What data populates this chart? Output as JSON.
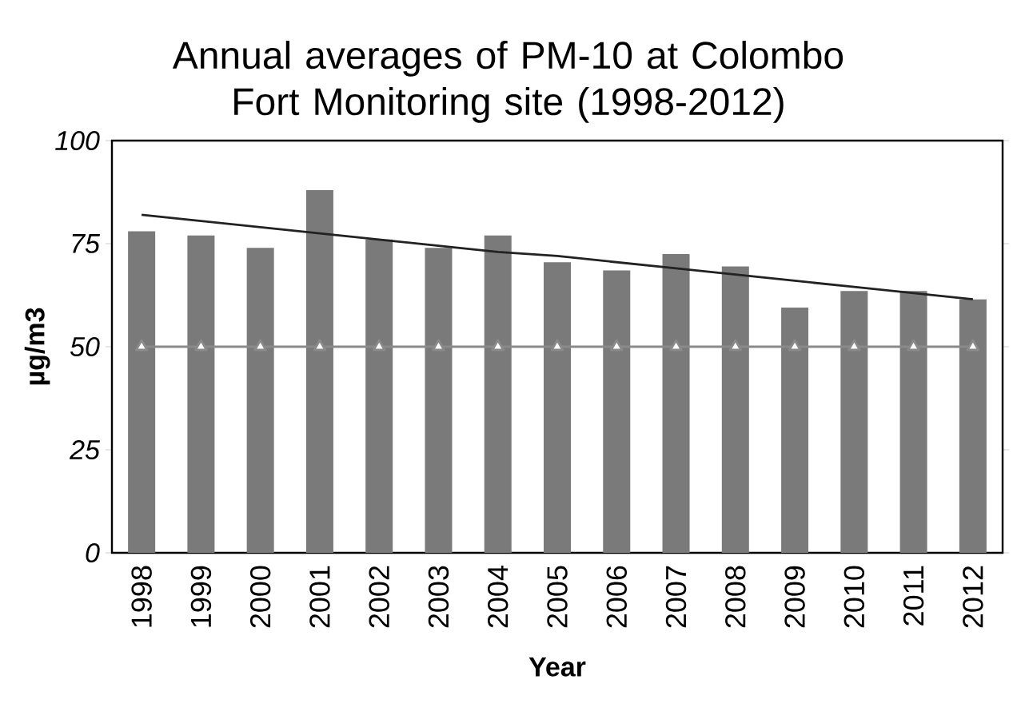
{
  "chart_data": {
    "type": "bar",
    "title": "Annual averages of PM-10 at Colombo Fort Monitoring site (1998-2012)",
    "xlabel": "Year",
    "ylabel": "µg/m3",
    "categories": [
      "1998",
      "1999",
      "2000",
      "2001",
      "2002",
      "2003",
      "2004",
      "2005",
      "2006",
      "2007",
      "2008",
      "2009",
      "2010",
      "2011",
      "2012"
    ],
    "series": [
      {
        "color": "#7a7a7a",
        "values": [
          78,
          77,
          74,
          88,
          76,
          74,
          77,
          70.5,
          68.5,
          72.5,
          69.5,
          59.5,
          63.5,
          63.5,
          61.5
        ]
      },
      {
        "type": "line",
        "color": "#8a8a8a",
        "marker": "triangle",
        "values": [
          50,
          50,
          50,
          50,
          50,
          50,
          50,
          50,
          50,
          50,
          50,
          50,
          50,
          50,
          50
        ]
      },
      {
        "type": "line",
        "color": "#222222",
        "values": [
          82,
          80.5,
          79,
          77.5,
          76,
          74.5,
          73,
          72,
          70.5,
          69,
          67.5,
          66,
          64.5,
          63,
          61.5
        ]
      }
    ],
    "ylim": [
      0,
      100
    ],
    "yticks": [
      0,
      25,
      50,
      75,
      100
    ],
    "grid": false
  }
}
